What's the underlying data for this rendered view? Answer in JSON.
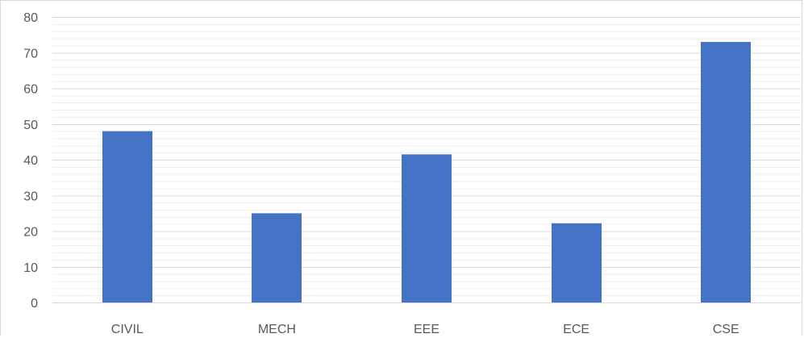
{
  "chart_data": {
    "type": "bar",
    "title": "",
    "xlabel": "",
    "ylabel": "",
    "categories": [
      "CIVIL",
      "MECH",
      "EEE",
      "ECE",
      "CSE"
    ],
    "values": [
      48,
      25,
      41.5,
      22.2,
      73
    ],
    "ylim": [
      0,
      80
    ],
    "yticks": [
      0,
      10,
      20,
      30,
      40,
      50,
      60,
      70,
      80
    ],
    "grid": "horizontal major and minor",
    "legend": "none",
    "colors": {
      "bar": "#4472c4",
      "major_grid": "#d9d9d9",
      "minor_grid": "#eeeeee",
      "axis": "#d9d9d9",
      "label": "#595959"
    }
  }
}
